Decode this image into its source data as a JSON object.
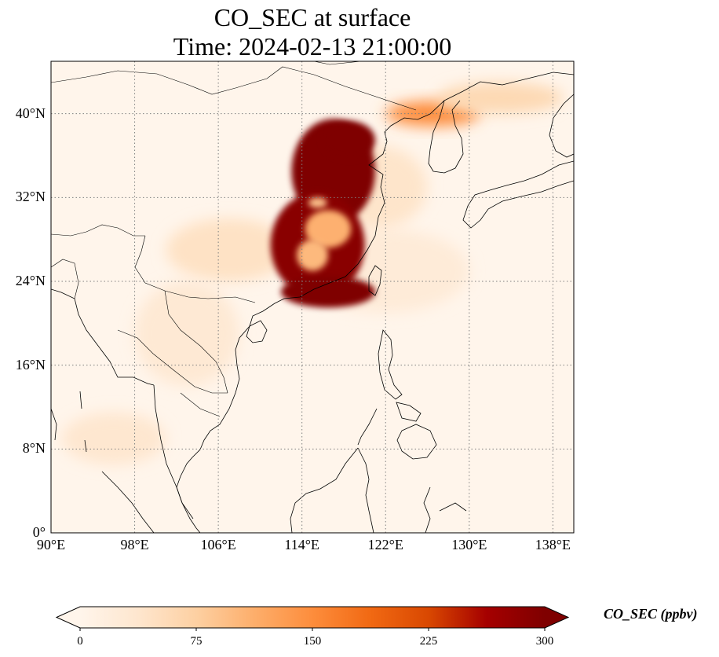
{
  "figure": {
    "title_line1": "CO_SEC at surface",
    "title_line2": "Time: 2024-02-13 21:00:00"
  },
  "map": {
    "projection": "PlateCarree",
    "lon_range": [
      90,
      140
    ],
    "lat_range": [
      0,
      45
    ],
    "gridlines": "dotted",
    "lon_ticks": [
      {
        "value": 90,
        "label": "90°E"
      },
      {
        "value": 98,
        "label": "98°E"
      },
      {
        "value": 106,
        "label": "106°E"
      },
      {
        "value": 114,
        "label": "114°E"
      },
      {
        "value": 122,
        "label": "122°E"
      },
      {
        "value": 130,
        "label": "130°E"
      },
      {
        "value": 138,
        "label": "138°E"
      }
    ],
    "lat_ticks": [
      {
        "value": 0,
        "label": "0°"
      },
      {
        "value": 8,
        "label": "8°N"
      },
      {
        "value": 16,
        "label": "16°N"
      },
      {
        "value": 24,
        "label": "24°N"
      },
      {
        "value": 32,
        "label": "32°N"
      },
      {
        "value": 40,
        "label": "40°N"
      }
    ],
    "field_background_color": "#fff5eb",
    "plumes": [
      {
        "lon": 117,
        "lat": 34.5,
        "rlon": 4.0,
        "rlat": 5.0,
        "value": 320
      },
      {
        "lon": 115.5,
        "lat": 27.5,
        "rlon": 4.5,
        "rlat": 5.0,
        "value": 290
      },
      {
        "lon": 116.5,
        "lat": 23.0,
        "rlon": 4.5,
        "rlat": 1.5,
        "value": 300
      },
      {
        "lon": 118.5,
        "lat": 37.5,
        "rlon": 2.5,
        "rlat": 1.8,
        "value": 310
      },
      {
        "lon": 126.5,
        "lat": 40.0,
        "rlon": 4.5,
        "rlat": 1.2,
        "value": 150
      },
      {
        "lon": 133,
        "lat": 41.5,
        "rlon": 6,
        "rlat": 1.5,
        "value": 60
      },
      {
        "lon": 107,
        "lat": 27,
        "rlon": 6,
        "rlat": 3,
        "value": 45
      },
      {
        "lon": 103,
        "lat": 19,
        "rlon": 5,
        "rlat": 5,
        "value": 30
      },
      {
        "lon": 96,
        "lat": 9,
        "rlon": 5,
        "rlat": 2.5,
        "value": 35
      },
      {
        "lon": 122,
        "lat": 25,
        "rlon": 8,
        "rlat": 4,
        "value": 25
      },
      {
        "lon": 121,
        "lat": 33,
        "rlon": 5,
        "rlat": 4,
        "value": 40
      }
    ],
    "holes": [
      {
        "lon": 116.5,
        "lat": 29,
        "rlon": 2.2,
        "rlat": 1.8,
        "value": 110
      },
      {
        "lon": 115,
        "lat": 26.5,
        "rlon": 1.5,
        "rlat": 1.5,
        "value": 100
      },
      {
        "lon": 115.5,
        "lat": 31.5,
        "rlon": 0.9,
        "rlat": 0.5,
        "value": 90
      }
    ]
  },
  "colorbar": {
    "label": "CO_SEC (ppbv)",
    "cmap": "OrRd",
    "min": 0,
    "max": 300,
    "extend": "both",
    "ticks": [
      {
        "value": 0,
        "label": "0"
      },
      {
        "value": 75,
        "label": "75"
      },
      {
        "value": 150,
        "label": "150"
      },
      {
        "value": 225,
        "label": "225"
      },
      {
        "value": 300,
        "label": "300"
      }
    ],
    "colors": [
      "#fff5eb",
      "#fee6ce",
      "#fdd0a2",
      "#fdae6b",
      "#fd8d3c",
      "#f16913",
      "#d94801",
      "#a50000",
      "#7f0000"
    ]
  }
}
